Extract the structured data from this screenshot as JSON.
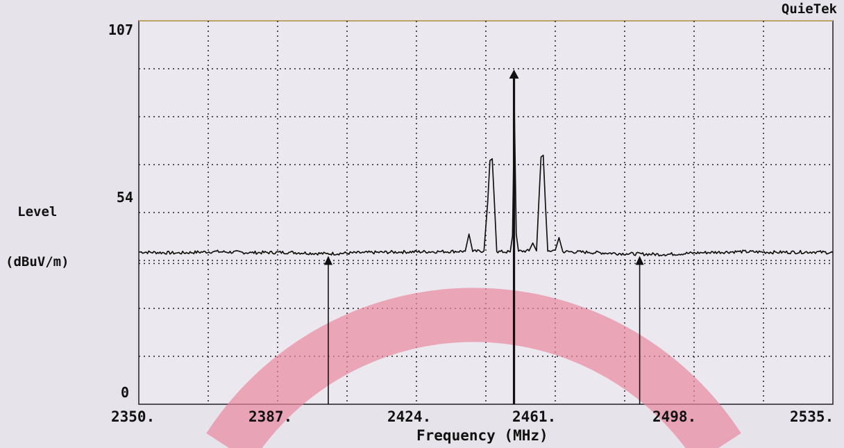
{
  "brand": "QuieTek",
  "chart_data": {
    "type": "line",
    "ylabel_line1": "Level",
    "ylabel_line2": "(dBuV/m)",
    "xlabel": "Frequency (MHz)",
    "xlim": [
      2350,
      2535
    ],
    "ylim": [
      0,
      107
    ],
    "y_ticks": [
      "107",
      "54",
      "0"
    ],
    "y_tick_values": [
      107,
      54,
      0
    ],
    "x_ticks": [
      "2350.",
      "2387.",
      "2424.",
      "2461.",
      "2498.",
      "2535."
    ],
    "x_tick_values": [
      2350,
      2387,
      2424,
      2461,
      2498,
      2535
    ],
    "grid": true,
    "noise_floor_level": 42,
    "series": [
      {
        "points": [
          [
            2350,
            42.5
          ],
          [
            2360,
            42.2
          ],
          [
            2370,
            42.6
          ],
          [
            2380,
            42.3
          ],
          [
            2390,
            42.4
          ],
          [
            2400,
            42.0
          ],
          [
            2410,
            42.3
          ],
          [
            2420,
            42.5
          ],
          [
            2430,
            42.6
          ],
          [
            2437,
            42.7
          ],
          [
            2438,
            47.5
          ],
          [
            2439,
            42.6
          ],
          [
            2442,
            42.8
          ],
          [
            2443,
            56.5
          ],
          [
            2443.6,
            68.0
          ],
          [
            2444.2,
            68.5
          ],
          [
            2444.8,
            56.0
          ],
          [
            2445.4,
            42.6
          ],
          [
            2449,
            42.5
          ],
          [
            2449.6,
            47.0
          ],
          [
            2450.1,
            82.0
          ],
          [
            2450.6,
            47.5
          ],
          [
            2451.2,
            42.7
          ],
          [
            2454,
            42.8
          ],
          [
            2455,
            45.0
          ],
          [
            2456,
            42.8
          ],
          [
            2456.6,
            56.0
          ],
          [
            2457.2,
            69.0
          ],
          [
            2457.8,
            69.5
          ],
          [
            2458.4,
            55.5
          ],
          [
            2459.0,
            42.7
          ],
          [
            2461,
            43.0
          ],
          [
            2462,
            46.5
          ],
          [
            2463,
            42.6
          ],
          [
            2470,
            42.4
          ],
          [
            2480,
            42.0
          ],
          [
            2490,
            41.8
          ],
          [
            2500,
            42.3
          ],
          [
            2510,
            42.6
          ],
          [
            2520,
            42.4
          ],
          [
            2530,
            42.5
          ],
          [
            2535,
            42.3
          ]
        ]
      }
    ],
    "markers": [
      {
        "x": 2400.5,
        "y": 42,
        "style": "thin"
      },
      {
        "x": 2450.0,
        "y": 94,
        "style": "bold"
      },
      {
        "x": 2483.5,
        "y": 42,
        "style": "thin"
      }
    ],
    "colors": {
      "background": "#e6e4ea",
      "plot_background": "#ebe9ef",
      "grid": "#1e1e28",
      "trace": "#14120e",
      "frame_top": "#b9a36a",
      "watermark": "#e9879f"
    }
  }
}
